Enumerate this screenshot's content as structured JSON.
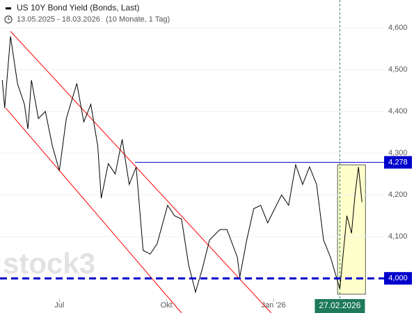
{
  "chart_data": {
    "type": "line",
    "title": "US 10Y Bond Yield (Bonds, Last)",
    "subtitle": "13.05.2025 - 18.03.2026",
    "note": "(10 Monate, 1 Tag)",
    "watermark": "stock3",
    "color": "#000000",
    "x": [
      "2025-05-13",
      "2025-05-15",
      "2025-05-20",
      "2025-05-26",
      "2025-06-01",
      "2025-06-04",
      "2025-06-07",
      "2025-06-13",
      "2025-06-19",
      "2025-06-25",
      "2025-07-01",
      "2025-07-07",
      "2025-07-16",
      "2025-07-22",
      "2025-07-28",
      "2025-08-03",
      "2025-08-06",
      "2025-08-12",
      "2025-08-18",
      "2025-08-24",
      "2025-08-30",
      "2025-09-05",
      "2025-09-11",
      "2025-09-17",
      "2025-09-23",
      "2025-10-02",
      "2025-10-08",
      "2025-10-14",
      "2025-10-20",
      "2025-10-26",
      "2025-11-01",
      "2025-11-07",
      "2025-11-16",
      "2025-11-22",
      "2025-12-01",
      "2025-12-03",
      "2025-12-09",
      "2025-12-15",
      "2025-12-21",
      "2025-12-27",
      "2026-01-02",
      "2026-01-08",
      "2026-01-14",
      "2026-01-20",
      "2026-01-26",
      "2026-02-01",
      "2026-02-07",
      "2026-02-13",
      "2026-02-19",
      "2026-02-27",
      "2026-03-05",
      "2026-03-09",
      "2026-03-12",
      "2026-03-15",
      "2026-03-18"
    ],
    "values": [
      4.475,
      4.408,
      4.58,
      4.467,
      4.417,
      4.358,
      4.475,
      4.383,
      4.4,
      4.317,
      4.258,
      4.383,
      4.467,
      4.375,
      4.417,
      4.317,
      4.192,
      4.275,
      4.25,
      4.333,
      4.225,
      4.267,
      4.067,
      4.058,
      4.083,
      4.175,
      4.15,
      4.142,
      4.033,
      3.967,
      4.025,
      4.092,
      4.117,
      4.117,
      4.05,
      4.003,
      4.092,
      4.167,
      4.175,
      4.133,
      4.167,
      4.2,
      4.175,
      4.272,
      4.225,
      4.267,
      4.225,
      4.092,
      4.05,
      3.975,
      4.15,
      4.108,
      4.2,
      4.267,
      4.183
    ],
    "xlim": [
      "2025-05-11",
      "2026-04-06"
    ],
    "xticks": [
      {
        "value": "2025-07-01",
        "label": "Jul"
      },
      {
        "value": "2025-10-01",
        "label": "Okt"
      },
      {
        "value": "2026-01-01",
        "label": "Jan '26"
      }
    ],
    "ylim": [
      3.917,
      4.667
    ],
    "yticks": [
      {
        "value": 4.1,
        "label": "4,100"
      },
      {
        "value": 4.2,
        "label": "4,200"
      },
      {
        "value": 4.3,
        "label": "4,300"
      },
      {
        "value": 4.4,
        "label": "4,400"
      },
      {
        "value": 4.5,
        "label": "4,500"
      },
      {
        "value": 4.6,
        "label": "4,600"
      }
    ],
    "grid": true,
    "levels": [
      {
        "value": 4.278,
        "label": "4,278",
        "start": "2025-09-04",
        "color": "#0000cc",
        "style": "solid"
      },
      {
        "value": 4.0,
        "label": "4,000",
        "color": "#0000cc",
        "style": "dashed"
      }
    ],
    "trendlines": [
      {
        "x": [
          "2025-05-20",
          "2025-12-30"
        ],
        "y": [
          4.592,
          3.917
        ],
        "color": "#ff0000"
      },
      {
        "x": [
          "2025-05-16",
          "2025-10-14"
        ],
        "y": [
          4.408,
          3.917
        ],
        "color": "#ff0000"
      }
    ],
    "crosshair": {
      "x": "2026-02-27",
      "label": "27.02.2026",
      "color": "#1d7a5c"
    },
    "highlight": {
      "x": [
        "2026-02-25",
        "2026-03-21"
      ],
      "y": [
        3.962,
        4.272
      ],
      "color": "#ffffcc"
    }
  }
}
